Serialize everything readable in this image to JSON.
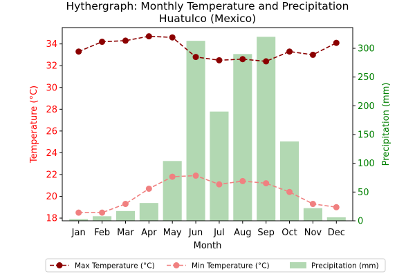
{
  "chart_data": {
    "type": "bar+line",
    "title_line1": "Hythergraph: Monthly Temperature and Precipitation",
    "title_line2": "Huatulco (Mexico)",
    "xlabel": "Month",
    "ylabel_left": "Temperature (°C)",
    "ylabel_right": "Precipitation (mm)",
    "categories": [
      "Jan",
      "Feb",
      "Mar",
      "Apr",
      "May",
      "Jun",
      "Jul",
      "Aug",
      "Sep",
      "Oct",
      "Nov",
      "Dec"
    ],
    "ylim_left": [
      17.75,
      35.5
    ],
    "yticks_left": [
      18,
      20,
      22,
      24,
      26,
      28,
      30,
      32,
      34
    ],
    "ylim_right": [
      0,
      336
    ],
    "yticks_right": [
      0,
      50,
      100,
      150,
      200,
      250,
      300
    ],
    "grid": false,
    "legend_position": "bottom-center",
    "colors": {
      "left_axis": "#ff0000",
      "right_axis": "#008000",
      "max_temp": "#8b0000",
      "min_temp": "#f08080",
      "precip": "#b2d8b2"
    },
    "series": [
      {
        "name": "Max Temperature (°C)",
        "kind": "line",
        "axis": "left",
        "values": [
          33.3,
          34.2,
          34.3,
          34.7,
          34.6,
          32.8,
          32.5,
          32.6,
          32.4,
          33.3,
          33.0,
          34.1
        ]
      },
      {
        "name": "Min Temperature (°C)",
        "kind": "line",
        "axis": "left",
        "values": [
          18.5,
          18.5,
          19.3,
          20.7,
          21.8,
          21.9,
          21.1,
          21.4,
          21.2,
          20.4,
          19.3,
          19.0
        ]
      },
      {
        "name": "Precipitation (mm)",
        "kind": "bar",
        "axis": "right",
        "values": [
          3,
          8,
          17,
          31,
          104,
          313,
          190,
          290,
          320,
          138,
          22,
          6
        ]
      }
    ]
  }
}
